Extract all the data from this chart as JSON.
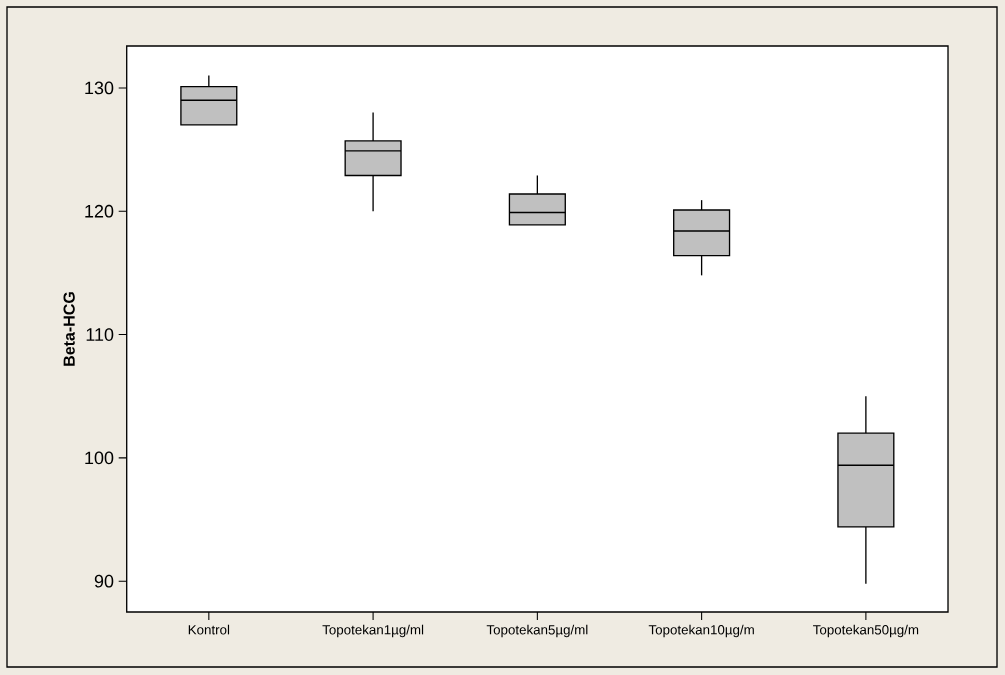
{
  "chart_data": {
    "type": "box",
    "ylabel": "Beta-HCG",
    "categories": [
      "Kontrol",
      "Topotekan1µg/ml",
      "Topotekan5µg/ml",
      "Topotekan10µg/m",
      "Topotekan50µg/m"
    ],
    "boxes": [
      {
        "low": 127,
        "q1": 127,
        "median": 129,
        "q3": 130.1,
        "high": 131
      },
      {
        "low": 120,
        "q1": 122.9,
        "median": 124.9,
        "q3": 125.7,
        "high": 128
      },
      {
        "low": 118.9,
        "q1": 118.9,
        "median": 119.9,
        "q3": 121.4,
        "high": 122.9
      },
      {
        "low": 114.8,
        "q1": 116.4,
        "median": 118.4,
        "q3": 120.1,
        "high": 120.9
      },
      {
        "low": 89.8,
        "q1": 94.4,
        "median": 99.4,
        "q3": 102,
        "high": 105
      }
    ],
    "color": "#c0c0c0",
    "ylim": [
      87.5,
      133.4
    ],
    "yticks": [
      90,
      100,
      110,
      120,
      130
    ]
  }
}
